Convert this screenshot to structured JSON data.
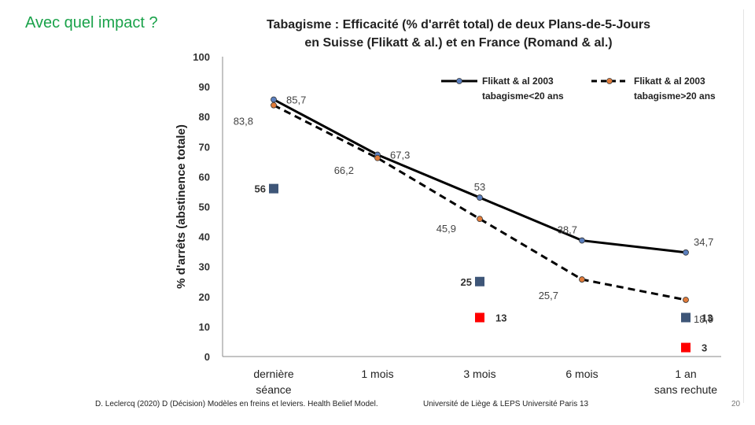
{
  "slide": {
    "title": "Avec quel impact ?",
    "footer_left": "D. Leclercq (2020) D (Décision) Modèles en freins et leviers. Health Belief Model.",
    "footer_right": "Université de Liège  &  LEPS Université Paris 13",
    "page_number": "20"
  },
  "chart_data": {
    "type": "line",
    "title": "Tabagisme : Efficacité (% d'arrêt total) de deux Plans-de-5-Jours",
    "subtitle": "en Suisse (Flikatt & al.)  et en France (Romand & al.)",
    "ylabel": "% d'arrêts (abstinence totale)",
    "xlabel": "",
    "ylim": [
      0,
      100
    ],
    "yticks": [
      "0",
      "10",
      "20",
      "30",
      "40",
      "50",
      "60",
      "70",
      "80",
      "90",
      "100"
    ],
    "categories": [
      "dernière séance",
      "1 mois",
      "3 mois",
      "6 mois",
      "1 an sans rechute"
    ],
    "category_lines": [
      [
        "dernière",
        "séance"
      ],
      [
        "1 mois"
      ],
      [
        "3 mois"
      ],
      [
        "6 mois"
      ],
      [
        "1 an",
        "sans rechute"
      ]
    ],
    "legend_position": "top-right",
    "series": [
      {
        "name": "Flikatt & al 2003 tabagisme<20 ans",
        "legend_lines": [
          "Flikatt & al 2003",
          "tabagisme<20 ans"
        ],
        "style": "solid",
        "color": "#000000",
        "marker_color": "#5b7fbe",
        "values": [
          85.7,
          67.3,
          53,
          38.7,
          34.7
        ],
        "labels": [
          "85,7",
          "67,3",
          "53",
          "38,7",
          "34,7"
        ]
      },
      {
        "name": "Flikatt & al 2003 tabagisme>20 ans",
        "legend_lines": [
          "Flikatt & al 2003",
          "tabagisme>20 ans"
        ],
        "style": "dashed",
        "color": "#000000",
        "marker_color": "#e07b3a",
        "values": [
          83.8,
          66.2,
          45.9,
          25.7,
          18.9
        ],
        "labels": [
          "83,8",
          "66,2",
          "45,9",
          "25,7",
          "18,9"
        ]
      }
    ],
    "extra_points": [
      {
        "category": "dernière séance",
        "value": 56,
        "label": "56",
        "color": "#3e5678"
      },
      {
        "category": "3 mois",
        "value": 25,
        "label": "25",
        "color": "#3e5678"
      },
      {
        "category": "3 mois",
        "value": 13,
        "label": "13",
        "color": "#ff0000"
      },
      {
        "category": "1 an sans rechute",
        "value": 13,
        "label": "13",
        "color": "#3e5678"
      },
      {
        "category": "1 an sans rechute",
        "value": 3,
        "label": "3",
        "color": "#ff0000"
      }
    ]
  }
}
